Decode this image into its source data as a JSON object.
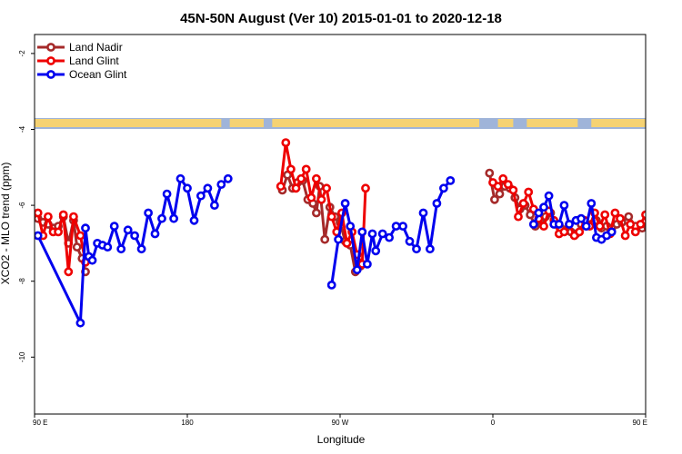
{
  "chart_data": {
    "type": "line",
    "title": "45N-50N August (Ver 10)   2015-01-01 to 2020-12-18",
    "xlabel": "Longitude",
    "ylabel": "XCO2 - MLO trend (ppm)",
    "xlim": [
      90,
      450
    ],
    "ylim": [
      -11.5,
      -1.5
    ],
    "x_ticks": [
      {
        "value": 90,
        "label": "90 E"
      },
      {
        "value": 180,
        "label": "180"
      },
      {
        "value": 270,
        "label": "90 W"
      },
      {
        "value": 360,
        "label": "0"
      },
      {
        "value": 450,
        "label": "90 E"
      },
      {
        "value": 540,
        "label": "180"
      }
    ],
    "y_ticks": [
      {
        "value": -2,
        "label": "-2"
      },
      {
        "value": -4,
        "label": "-4"
      },
      {
        "value": -6,
        "label": "-6"
      },
      {
        "value": -8,
        "label": "-8"
      },
      {
        "value": -10,
        "label": "-10"
      }
    ],
    "legend_position": "top-left",
    "series": [
      {
        "name": "Land Nadir",
        "color": "#a52a2a",
        "points": [
          [
            92,
            -6.35
          ],
          [
            95,
            -6.45
          ],
          [
            98,
            -6.5
          ],
          [
            101,
            -6.6
          ],
          [
            104,
            -6.55
          ],
          [
            107,
            -6.3
          ],
          [
            110,
            -7.0
          ],
          [
            113,
            -6.4
          ],
          [
            115,
            -7.1
          ],
          [
            118,
            -7.4
          ],
          [
            120,
            -7.75
          ],
          [
            236,
            -5.6
          ],
          [
            239,
            -5.2
          ],
          [
            242,
            -5.55
          ],
          [
            245,
            -5.4
          ],
          [
            248,
            -5.35
          ],
          [
            251,
            -5.85
          ],
          [
            254,
            -5.95
          ],
          [
            256,
            -6.2
          ],
          [
            258,
            -5.5
          ],
          [
            261,
            -6.9
          ],
          [
            264,
            -6.05
          ],
          [
            267,
            -6.3
          ],
          [
            270,
            -6.45
          ],
          [
            273,
            -6.95
          ],
          [
            276,
            -7.05
          ],
          [
            279,
            -7.75
          ],
          [
            282,
            -7.6
          ],
          [
            358,
            -5.15
          ],
          [
            361,
            -5.85
          ],
          [
            364,
            -5.7
          ],
          [
            367,
            -5.5
          ],
          [
            370,
            -5.55
          ],
          [
            373,
            -5.8
          ],
          [
            376,
            -6.1
          ],
          [
            379,
            -6.0
          ],
          [
            382,
            -6.25
          ],
          [
            385,
            -6.55
          ],
          [
            388,
            -6.4
          ],
          [
            391,
            -6.3
          ],
          [
            394,
            -6.2
          ],
          [
            397,
            -6.5
          ],
          [
            400,
            -6.6
          ],
          [
            403,
            -6.65
          ],
          [
            406,
            -6.7
          ],
          [
            409,
            -6.75
          ],
          [
            412,
            -6.5
          ],
          [
            415,
            -6.55
          ],
          [
            418,
            -6.5
          ],
          [
            421,
            -6.4
          ],
          [
            424,
            -6.6
          ],
          [
            427,
            -6.55
          ],
          [
            430,
            -6.6
          ],
          [
            433,
            -6.5
          ],
          [
            436,
            -6.45
          ],
          [
            440,
            -6.3
          ],
          [
            444,
            -6.55
          ],
          [
            448,
            -6.6
          ],
          [
            451,
            -6.55
          ],
          [
            456,
            -6.35
          ],
          [
            458,
            -6.45
          ],
          [
            460,
            -6.5
          ],
          [
            462,
            -6.6
          ],
          [
            465,
            -6.55
          ],
          [
            467,
            -6.3
          ],
          [
            469,
            -7.0
          ],
          [
            472,
            -6.4
          ],
          [
            474,
            -7.05
          ],
          [
            477,
            -7.4
          ],
          [
            480,
            -7.75
          ]
        ]
      },
      {
        "name": "Land Glint",
        "color": "#ee0000",
        "points": [
          [
            92,
            -6.2
          ],
          [
            95,
            -6.8
          ],
          [
            98,
            -6.3
          ],
          [
            101,
            -6.7
          ],
          [
            104,
            -6.7
          ],
          [
            107,
            -6.25
          ],
          [
            110,
            -7.75
          ],
          [
            113,
            -6.3
          ],
          [
            117,
            -6.8
          ],
          [
            120,
            -7.5
          ],
          [
            235,
            -5.5
          ],
          [
            238,
            -4.35
          ],
          [
            241,
            -5.05
          ],
          [
            244,
            -5.55
          ],
          [
            247,
            -5.3
          ],
          [
            250,
            -5.05
          ],
          [
            253,
            -5.8
          ],
          [
            256,
            -5.3
          ],
          [
            259,
            -5.85
          ],
          [
            262,
            -5.55
          ],
          [
            265,
            -6.3
          ],
          [
            268,
            -6.7
          ],
          [
            271,
            -6.2
          ],
          [
            274,
            -7.0
          ],
          [
            277,
            -6.7
          ],
          [
            280,
            -7.3
          ],
          [
            283,
            -7.55
          ],
          [
            285,
            -5.55
          ],
          [
            360,
            -5.4
          ],
          [
            363,
            -5.5
          ],
          [
            366,
            -5.3
          ],
          [
            369,
            -5.45
          ],
          [
            372,
            -5.6
          ],
          [
            375,
            -6.3
          ],
          [
            378,
            -5.95
          ],
          [
            381,
            -5.65
          ],
          [
            384,
            -6.1
          ],
          [
            387,
            -6.35
          ],
          [
            390,
            -6.55
          ],
          [
            393,
            -6.15
          ],
          [
            396,
            -6.4
          ],
          [
            399,
            -6.75
          ],
          [
            402,
            -6.7
          ],
          [
            405,
            -6.5
          ],
          [
            408,
            -6.8
          ],
          [
            411,
            -6.7
          ],
          [
            414,
            -6.4
          ],
          [
            417,
            -6.55
          ],
          [
            420,
            -6.2
          ],
          [
            423,
            -6.55
          ],
          [
            426,
            -6.25
          ],
          [
            429,
            -6.75
          ],
          [
            432,
            -6.2
          ],
          [
            435,
            -6.35
          ],
          [
            438,
            -6.8
          ],
          [
            441,
            -6.5
          ],
          [
            444,
            -6.7
          ],
          [
            447,
            -6.5
          ],
          [
            450,
            -6.25
          ],
          [
            453,
            -7.75
          ],
          [
            456,
            -6.3
          ],
          [
            459,
            -6.8
          ],
          [
            462,
            -6.4
          ],
          [
            466,
            -6.8
          ],
          [
            469,
            -7.5
          ]
        ]
      },
      {
        "name": "Ocean Glint",
        "color": "#0000ee",
        "points": [
          [
            92,
            -6.8
          ],
          [
            117,
            -9.1
          ],
          [
            120,
            -6.6
          ],
          [
            122,
            -7.35
          ],
          [
            124,
            -7.45
          ],
          [
            127,
            -7.0
          ],
          [
            130,
            -7.05
          ],
          [
            133,
            -7.1
          ],
          [
            137,
            -6.55
          ],
          [
            141,
            -7.15
          ],
          [
            145,
            -6.65
          ],
          [
            149,
            -6.8
          ],
          [
            153,
            -7.15
          ],
          [
            157,
            -6.2
          ],
          [
            161,
            -6.75
          ],
          [
            165,
            -6.35
          ],
          [
            168,
            -5.7
          ],
          [
            172,
            -6.35
          ],
          [
            176,
            -5.3
          ],
          [
            180,
            -5.55
          ],
          [
            184,
            -6.4
          ],
          [
            188,
            -5.75
          ],
          [
            192,
            -5.55
          ],
          [
            196,
            -6.0
          ],
          [
            200,
            -5.45
          ],
          [
            204,
            -5.3
          ],
          [
            265,
            -8.1
          ],
          [
            269,
            -6.9
          ],
          [
            273,
            -5.95
          ],
          [
            276,
            -6.55
          ],
          [
            280,
            -7.7
          ],
          [
            283,
            -6.7
          ],
          [
            286,
            -7.55
          ],
          [
            289,
            -6.75
          ],
          [
            291,
            -7.2
          ],
          [
            295,
            -6.75
          ],
          [
            299,
            -6.85
          ],
          [
            303,
            -6.55
          ],
          [
            307,
            -6.55
          ],
          [
            311,
            -6.95
          ],
          [
            315,
            -7.15
          ],
          [
            319,
            -6.2
          ],
          [
            323,
            -7.15
          ],
          [
            327,
            -5.95
          ],
          [
            331,
            -5.55
          ],
          [
            335,
            -5.35
          ],
          [
            384,
            -6.5
          ],
          [
            387,
            -6.2
          ],
          [
            390,
            -6.05
          ],
          [
            393,
            -5.75
          ],
          [
            396,
            -6.5
          ],
          [
            399,
            -6.5
          ],
          [
            402,
            -6.0
          ],
          [
            405,
            -6.5
          ],
          [
            409,
            -6.4
          ],
          [
            412,
            -6.35
          ],
          [
            415,
            -6.55
          ],
          [
            418,
            -5.95
          ],
          [
            421,
            -6.85
          ],
          [
            424,
            -6.9
          ],
          [
            427,
            -6.8
          ],
          [
            430,
            -6.7
          ],
          [
            466,
            -9.1
          ],
          [
            469,
            -6.6
          ],
          [
            471,
            -7.35
          ],
          [
            473,
            -7.45
          ],
          [
            476,
            -7.0
          ],
          [
            479,
            -7.05
          ],
          [
            482,
            -7.1
          ],
          [
            486,
            -6.55
          ],
          [
            490,
            -7.15
          ],
          [
            494,
            -6.7
          ],
          [
            498,
            -6.8
          ]
        ]
      }
    ],
    "land_bar_colors": {
      "land": "#f5d273",
      "ocean": "#9fb4d9"
    }
  }
}
